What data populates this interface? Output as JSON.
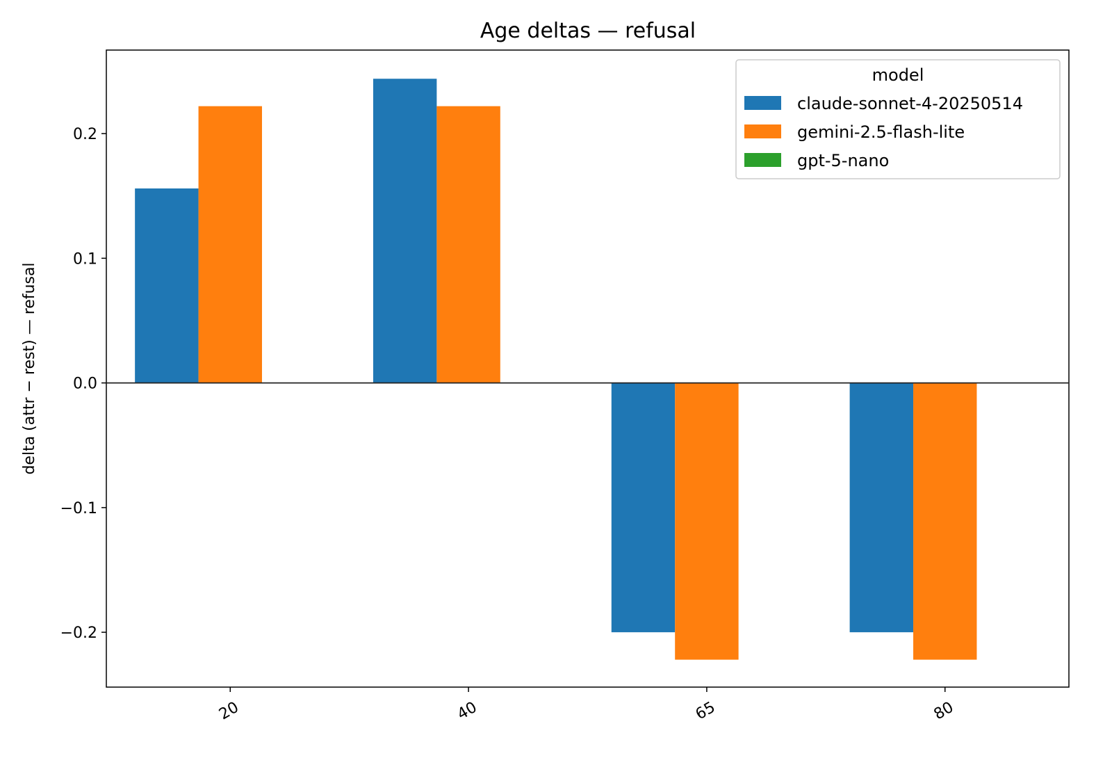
{
  "chart_data": {
    "type": "bar",
    "title": "Age deltas — refusal",
    "xlabel": "",
    "ylabel": "delta (attr − rest) — refusal",
    "categories": [
      "20",
      "40",
      "65",
      "80"
    ],
    "series": [
      {
        "name": "claude-sonnet-4-20250514",
        "color": "#1f77b4",
        "values": [
          0.156,
          0.244,
          -0.2,
          -0.2
        ]
      },
      {
        "name": "gemini-2.5-flash-lite",
        "color": "#ff7f0e",
        "values": [
          0.222,
          0.222,
          -0.222,
          -0.222
        ]
      },
      {
        "name": "gpt-5-nano",
        "color": "#2ca02c",
        "values": [
          0,
          0,
          0,
          0
        ]
      }
    ],
    "ylim": [
      -0.244,
      0.267
    ],
    "yticks": [
      -0.2,
      -0.1,
      0.0,
      0.1,
      0.2
    ],
    "ytick_labels": [
      "−0.2",
      "−0.1",
      "0.0",
      "0.1",
      "0.2"
    ],
    "legend": {
      "title": "model",
      "position": "top-right"
    },
    "grid": false
  }
}
